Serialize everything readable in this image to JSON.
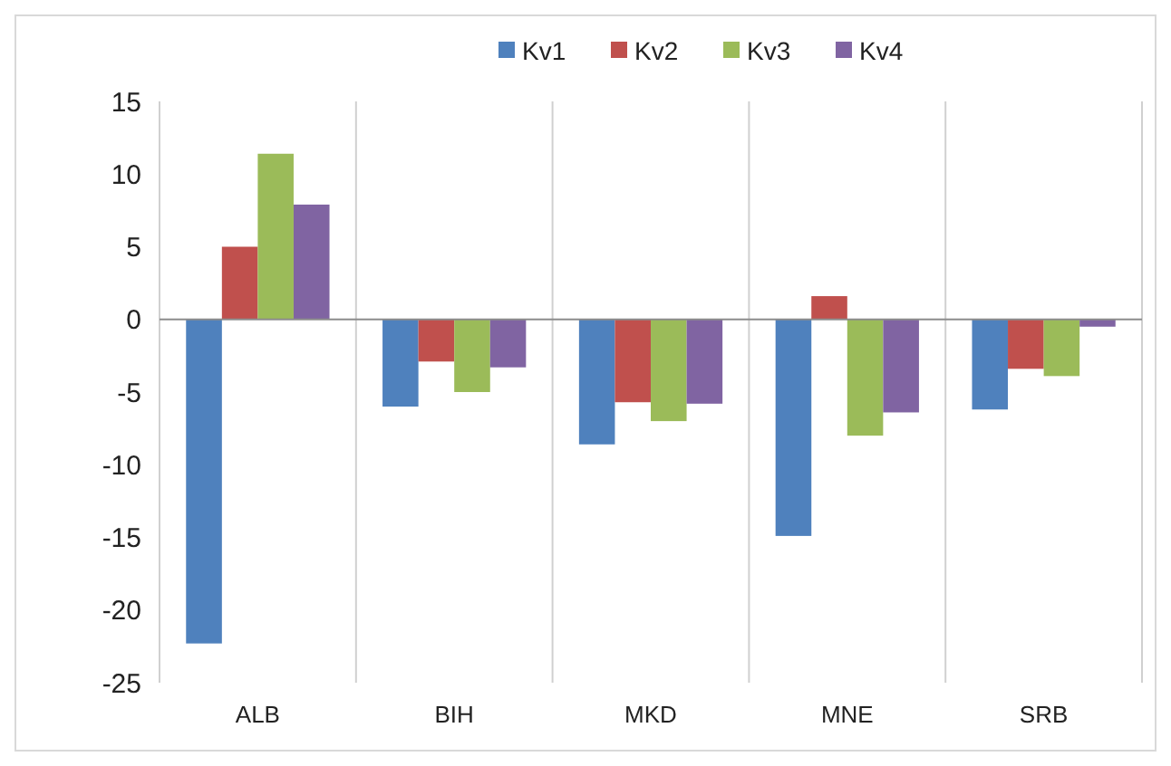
{
  "chart_data": {
    "type": "bar",
    "categories": [
      "ALB",
      "BIH",
      "MKD",
      "MNE",
      "SRB"
    ],
    "series": [
      {
        "name": "Kv1",
        "color": "#4f81bd",
        "values": [
          -22.3,
          -6.0,
          -8.6,
          -14.9,
          -6.2
        ]
      },
      {
        "name": "Kv2",
        "color": "#c0504d",
        "values": [
          5.0,
          -2.9,
          -5.7,
          1.6,
          -3.4
        ]
      },
      {
        "name": "Kv3",
        "color": "#9bbb59",
        "values": [
          11.4,
          -5.0,
          -7.0,
          -8.0,
          -3.9
        ]
      },
      {
        "name": "Kv4",
        "color": "#8064a2",
        "values": [
          7.9,
          -3.3,
          -5.8,
          -6.4,
          -0.5
        ]
      }
    ],
    "ylim": [
      -25,
      15
    ],
    "yticks": [
      -25,
      -20,
      -15,
      -10,
      -5,
      0,
      5,
      10,
      15
    ],
    "grid": "x",
    "legend": "top"
  }
}
